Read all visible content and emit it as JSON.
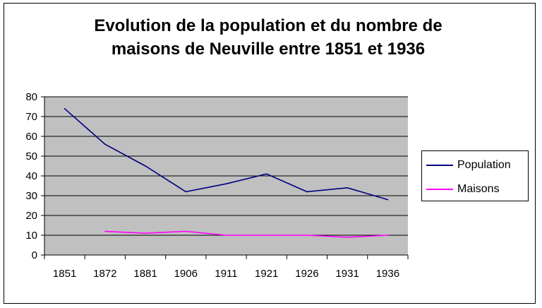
{
  "chart_data": {
    "type": "line",
    "title_line1": "Evolution de la population et du nombre de",
    "title_line2": "maisons de Neuville entre 1851 et 1936",
    "categories": [
      "1851",
      "1872",
      "1881",
      "1906",
      "1911",
      "1921",
      "1926",
      "1931",
      "1936"
    ],
    "series": [
      {
        "name": "Population",
        "color": "#000080",
        "values": [
          74,
          56,
          45,
          32,
          36,
          41,
          32,
          34,
          28
        ]
      },
      {
        "name": "Maisons",
        "color": "#ff00ff",
        "values": [
          null,
          12,
          11,
          12,
          10,
          10,
          10,
          9,
          10
        ]
      }
    ],
    "ylim": [
      0,
      80
    ],
    "yticks": [
      "0",
      "10",
      "20",
      "30",
      "40",
      "50",
      "60",
      "70",
      "80"
    ],
    "grid": true,
    "plot_background": "#c0c0c0",
    "legend_position": "right"
  }
}
